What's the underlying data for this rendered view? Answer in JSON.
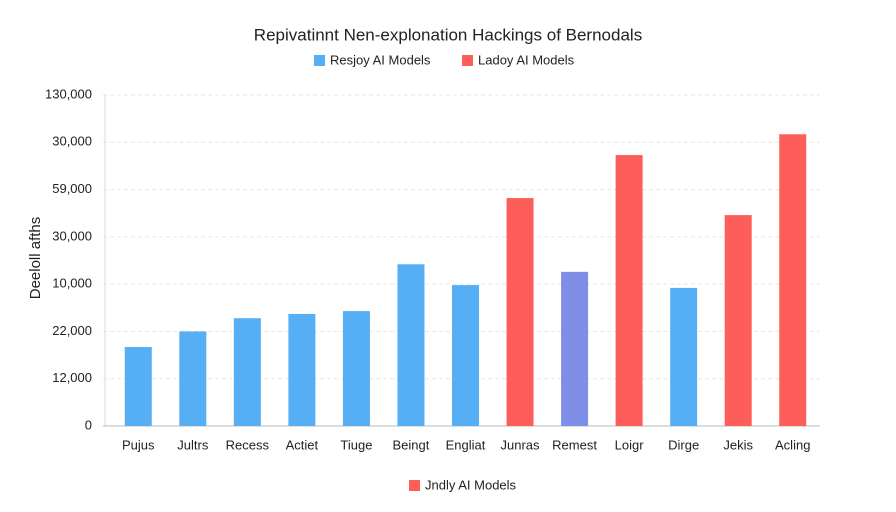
{
  "chart_data": {
    "type": "bar",
    "title": "Repivatinnt Nen-explonation Hackings of Bernodals",
    "y_label": "Deeloll afths",
    "legend": [
      {
        "name": "Resjoy AI Models",
        "color": "#56aef5"
      },
      {
        "name": "Ladoy AI Models",
        "color": "#fd5e5a"
      }
    ],
    "bottom_legend": {
      "name": "Jndly AI Models",
      "color": "#fd5e5a"
    },
    "categories": [
      "Pujus",
      "Jultrs",
      "Recess",
      "Actiet",
      "Tiuge",
      "Beingt",
      "Engliat",
      "Junras",
      "Remest",
      "Loigr",
      "Dirge",
      "Jekis",
      "Acling"
    ],
    "values": [
      1.67,
      2.0,
      2.28,
      2.37,
      2.43,
      3.42,
      2.98,
      4.82,
      3.26,
      5.73,
      2.92,
      4.46,
      6.17
    ],
    "colors": [
      "#56aef5",
      "#56aef5",
      "#56aef5",
      "#56aef5",
      "#56aef5",
      "#56aef5",
      "#56aef5",
      "#fd5e5a",
      "#7f8fe8",
      "#fd5e5a",
      "#56aef5",
      "#fd5e5a",
      "#fd5e5a"
    ],
    "ylim": [
      0,
      7
    ],
    "yticks": [
      0,
      {
        "value": 1,
        "label": "12,000"
      },
      {
        "value": 2,
        "label": "22,000"
      },
      {
        "value": 3,
        "label": "10,000"
      },
      {
        "value": 4,
        "label": "30,000"
      },
      {
        "value": 5,
        "label": "59,000"
      },
      {
        "value": 6,
        "label": "30,000"
      },
      {
        "value": 7,
        "label": "130,000"
      }
    ],
    "grid": true
  }
}
